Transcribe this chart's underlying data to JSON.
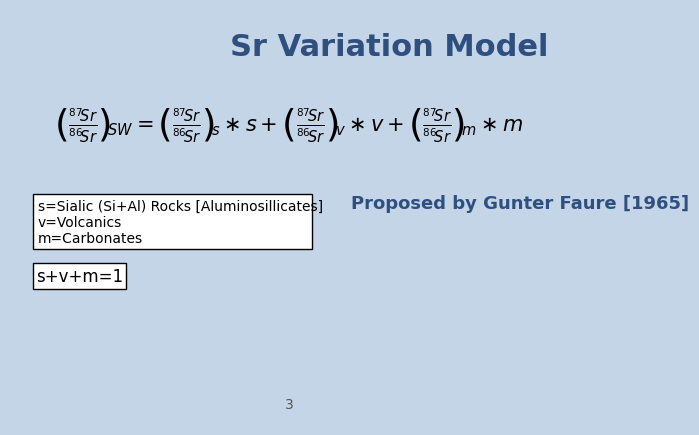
{
  "title": "Sr Variation Model",
  "title_color": "#2F4F7F",
  "title_fontsize": 22,
  "background_color": "#C5D5E8",
  "legend_lines": [
    "s=Sialic (Si+Al) Rocks [Aluminosillicates]",
    "v=Volcanics",
    "m=Carbonates"
  ],
  "legend_fontsize": 10,
  "proposed_text": "Proposed by Gunter Faure [1965]",
  "proposed_color": "#2F4F7F",
  "proposed_fontsize": 13,
  "constraint_text": "s+v+m=1",
  "constraint_fontsize": 12,
  "page_number": "3",
  "page_number_fontsize": 10,
  "equation_fontsize": 15
}
